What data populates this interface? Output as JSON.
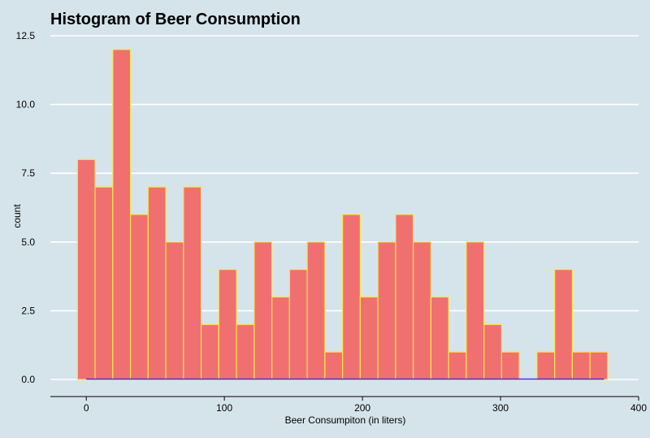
{
  "chart_data": {
    "type": "bar",
    "title": "Histogram of Beer Consumption",
    "xlabel": "Beer Consumpiton (in liters)",
    "ylabel": "count",
    "xlim": [
      -26,
      400
    ],
    "ylim": [
      0,
      12.5
    ],
    "x_ticks": [
      0,
      100,
      200,
      300,
      400
    ],
    "x_tick_labels": [
      "0",
      "100",
      "200",
      "300",
      "400"
    ],
    "y_ticks": [
      0,
      2.5,
      5,
      7.5,
      10,
      12.5
    ],
    "y_tick_labels": [
      "0.0",
      "2.5",
      "5.0",
      "7.5",
      "10.0",
      "12.5"
    ],
    "bin_width": 12.8,
    "bin_centers": [
      0,
      12.8,
      25.6,
      38.4,
      51.2,
      64,
      76.8,
      89.6,
      102.4,
      115.2,
      128,
      140.8,
      153.6,
      166.4,
      179.2,
      192,
      204.8,
      217.6,
      230.4,
      243.2,
      256,
      268.8,
      281.6,
      294.4,
      307.2,
      320,
      332.8,
      345.6,
      358.4,
      371.2
    ],
    "counts": [
      8,
      7,
      12,
      6,
      7,
      5,
      7,
      2,
      4,
      2,
      5,
      3,
      4,
      5,
      1,
      6,
      3,
      5,
      6,
      5,
      3,
      1,
      5,
      2,
      1,
      0,
      1,
      4,
      1,
      1
    ],
    "rug_range": [
      0,
      375
    ],
    "colors": {
      "bar_fill": "#f07070",
      "bar_stroke": "#f5e64a",
      "background": "#d5e4eb",
      "grid": "#ffffff",
      "rug": "#4a2fd0"
    },
    "grid": true
  }
}
